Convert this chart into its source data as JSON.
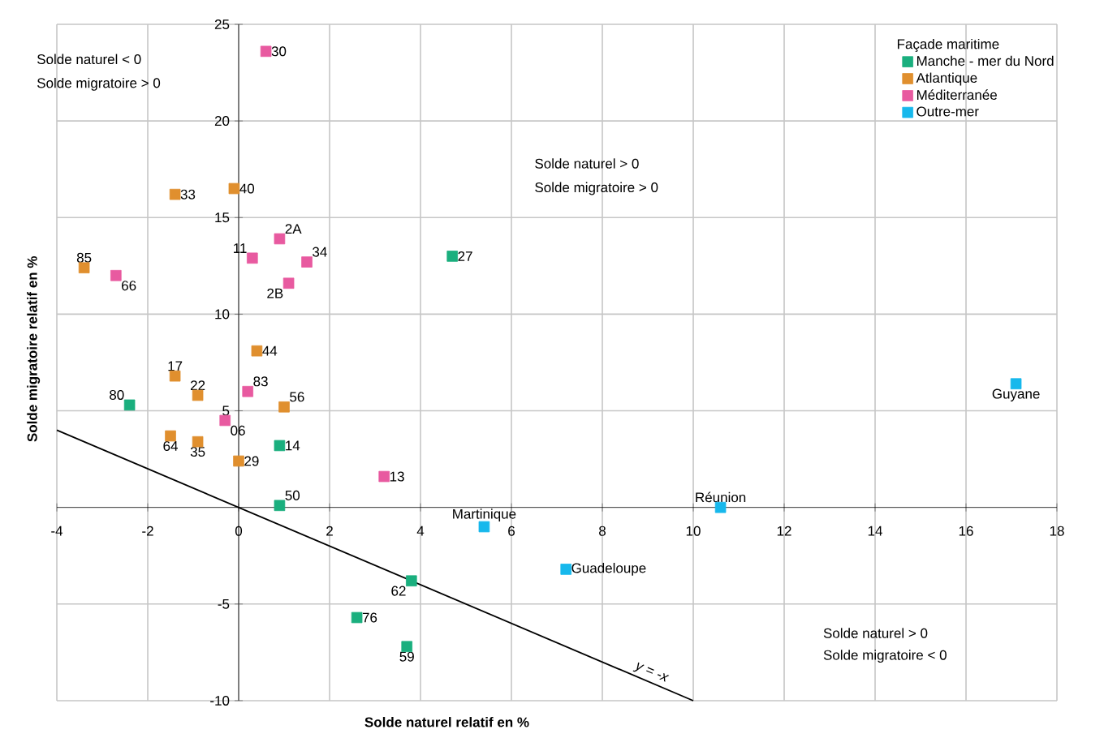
{
  "chart_data": {
    "type": "scatter",
    "xlabel": "Solde naturel relatif en %",
    "ylabel": "Solde migratoire relatif en %",
    "legend_title": "Façade maritime",
    "legend": "top right",
    "grid": true,
    "marker": "square",
    "xlim": [
      -4,
      18
    ],
    "ylim": [
      -10,
      25
    ],
    "xticks": [
      -4,
      -2,
      0,
      2,
      4,
      6,
      8,
      10,
      12,
      14,
      16,
      18
    ],
    "yticks": [
      -10,
      -5,
      5,
      10,
      15,
      20,
      25
    ],
    "series": [
      {
        "name": "Manche - mer du Nord",
        "color": "#1aaf7e",
        "x": [
          -2.4,
          4.7,
          0.9,
          0.9,
          3.8,
          2.6,
          3.7
        ],
        "values": [
          5.3,
          13.0,
          3.2,
          0.1,
          -3.8,
          -5.7,
          -7.2
        ]
      },
      {
        "name": "Atlantique",
        "color": "#e08f2e",
        "x": [
          -1.4,
          -0.1,
          -3.4,
          0.4,
          -1.4,
          -0.9,
          1.0,
          -1.5,
          -0.9,
          0.0
        ],
        "values": [
          16.2,
          16.5,
          12.4,
          8.1,
          6.8,
          5.8,
          5.2,
          3.7,
          3.4,
          2.4
        ]
      },
      {
        "name": "Méditerranée",
        "color": "#e85aa0",
        "x": [
          0.6,
          0.9,
          0.3,
          1.5,
          1.1,
          -2.7,
          0.2,
          -0.3,
          3.2
        ],
        "values": [
          23.6,
          13.9,
          12.9,
          12.7,
          11.6,
          12.0,
          6.0,
          4.5,
          1.6
        ]
      },
      {
        "name": "Outre-mer",
        "color": "#17b8ec",
        "x": [
          5.4,
          10.6,
          7.2,
          17.1
        ],
        "values": [
          -1.0,
          0.0,
          -3.2,
          6.4
        ]
      },
      {
        "type": "line",
        "color": "#000000",
        "line_style": "solid",
        "marker": "none",
        "x": [
          -4,
          10
        ],
        "values": [
          4,
          -10
        ]
      }
    ],
    "annotations": [
      "Solde naturel < 0",
      "Solde migratoire > 0",
      "Solde naturel > 0",
      "Solde migratoire > 0",
      "Solde naturel > 0",
      "Solde migratoire < 0",
      {
        "text": "y = -x",
        "x": 9,
        "y": -9
      },
      {
        "text": "80",
        "x": -2.4,
        "y": 5.3
      },
      {
        "text": "27",
        "x": 4.7,
        "y": 13.0
      },
      {
        "text": "14",
        "x": 0.9,
        "y": 3.2
      },
      {
        "text": "50",
        "x": 0.9,
        "y": 0.1
      },
      {
        "text": "62",
        "x": 3.8,
        "y": -3.8
      },
      {
        "text": "76",
        "x": 2.6,
        "y": -5.7
      },
      {
        "text": "59",
        "x": 3.7,
        "y": -7.2
      },
      {
        "text": "33",
        "x": -1.4,
        "y": 16.2
      },
      {
        "text": "40",
        "x": -0.1,
        "y": 16.5
      },
      {
        "text": "85",
        "x": -3.4,
        "y": 12.4
      },
      {
        "text": "44",
        "x": 0.4,
        "y": 8.1
      },
      {
        "text": "17",
        "x": -1.4,
        "y": 6.8
      },
      {
        "text": "22",
        "x": -0.9,
        "y": 5.8
      },
      {
        "text": "56",
        "x": 1.0,
        "y": 5.2
      },
      {
        "text": "64",
        "x": -1.5,
        "y": 3.7
      },
      {
        "text": "35",
        "x": -0.9,
        "y": 3.4
      },
      {
        "text": "29",
        "x": 0.0,
        "y": 2.4
      },
      {
        "text": "30",
        "x": 0.6,
        "y": 23.6
      },
      {
        "text": "2A",
        "x": 0.9,
        "y": 13.9
      },
      {
        "text": "11",
        "x": 0.3,
        "y": 12.9
      },
      {
        "text": "34",
        "x": 1.5,
        "y": 12.7
      },
      {
        "text": "2B",
        "x": 1.1,
        "y": 11.6
      },
      {
        "text": "66",
        "x": -2.7,
        "y": 12.0
      },
      {
        "text": "83",
        "x": 0.2,
        "y": 6.0
      },
      {
        "text": "06",
        "x": -0.3,
        "y": 4.5
      },
      {
        "text": "13",
        "x": 3.2,
        "y": 1.6
      },
      {
        "text": "Martinique",
        "x": 5.4,
        "y": -1.0
      },
      {
        "text": "Réunion",
        "x": 10.6,
        "y": 0.0
      },
      {
        "text": "Guadeloupe",
        "x": 7.2,
        "y": -3.2
      },
      {
        "text": "Guyane",
        "x": 17.1,
        "y": 6.4
      }
    ]
  }
}
